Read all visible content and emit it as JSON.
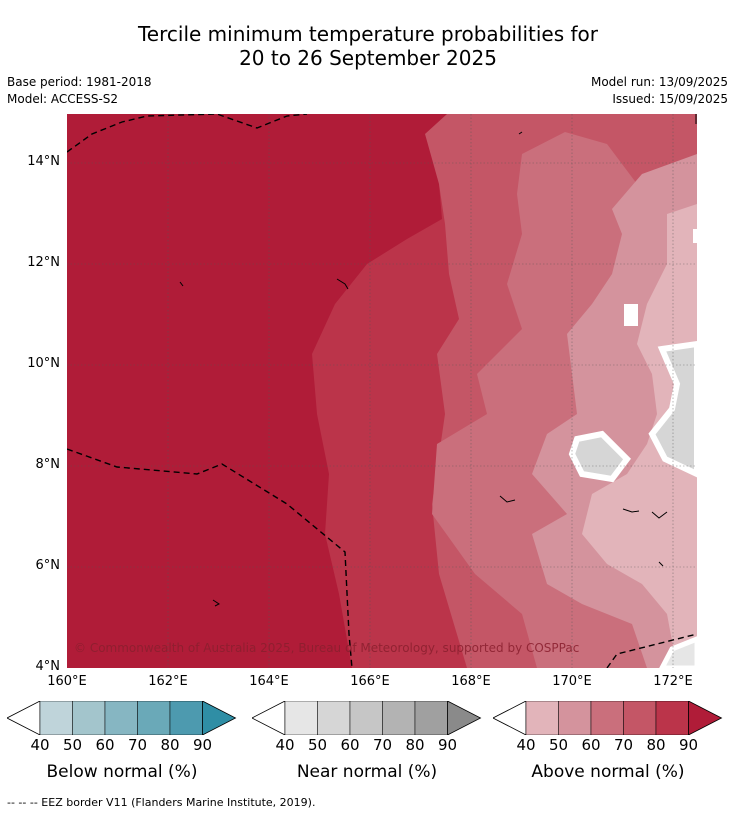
{
  "title_line1": "Tercile minimum temperature probabilities for",
  "title_line2": "20 to 26 September 2025",
  "base_period": "Base period: 1981-2018",
  "model": "Model: ACCESS-S2",
  "model_run": "Model run: 13/09/2025",
  "issued": "Issued: 15/09/2025",
  "copyright": "© Commonwealth of Australia 2025, Bureau of Meteorology, supported by COSPPac",
  "footnote": "--  --  -- EEZ border V11 (Flanders Marine Institute, 2019).",
  "map": {
    "lon_range": [
      160,
      172.5
    ],
    "lat_range": [
      4,
      15
    ],
    "lat_ticks": [
      "14°N",
      "12°N",
      "10°N",
      "8°N",
      "6°N",
      "4°N"
    ],
    "lon_ticks": [
      "160°E",
      "162°E",
      "164°E",
      "166°E",
      "168°E",
      "170°E",
      "172°E"
    ]
  },
  "legends": [
    {
      "label": "Below normal (%)",
      "ticks": [
        "40",
        "50",
        "60",
        "70",
        "80",
        "90"
      ],
      "colors": [
        "#bfd4da",
        "#a3c5cc",
        "#86b6c2",
        "#6aa9b8",
        "#4d9aaf",
        "#2f8ea5"
      ]
    },
    {
      "label": "Near normal (%)",
      "ticks": [
        "40",
        "50",
        "60",
        "70",
        "80",
        "90"
      ],
      "colors": [
        "#e6e6e6",
        "#d6d6d6",
        "#c6c6c6",
        "#b3b3b3",
        "#a0a0a0",
        "#8a8a8a"
      ]
    },
    {
      "label": "Above normal (%)",
      "ticks": [
        "40",
        "50",
        "60",
        "70",
        "80",
        "90"
      ],
      "colors": [
        "#e2b4ba",
        "#d4939d",
        "#ca6f7c",
        "#c45666",
        "#bb344a",
        "#b01c38"
      ]
    }
  ]
}
